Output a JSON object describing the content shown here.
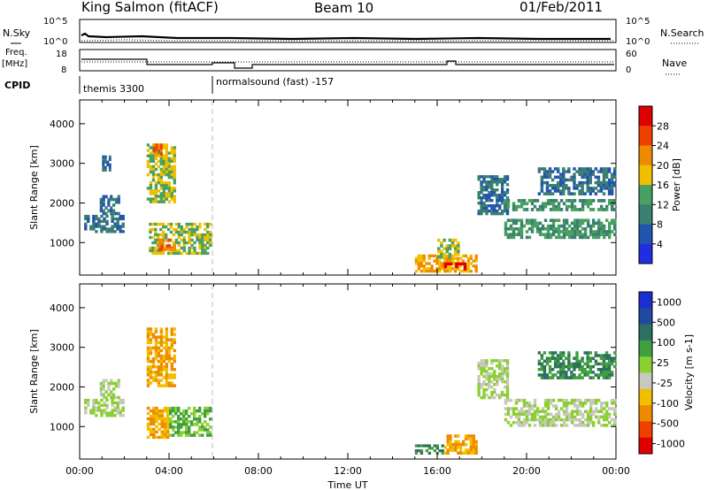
{
  "header": {
    "station": "King Salmon (fitACF)",
    "beam": "Beam 10",
    "date": "01/Feb/2011"
  },
  "noise_panel": {
    "left_label": "N.Sky",
    "right_label": "N.Search",
    "left_ticks": [
      "10^5",
      "10^0"
    ],
    "right_ticks": [
      "10^5",
      "10^0"
    ]
  },
  "freq_panel": {
    "left_label_top": "Freq.",
    "left_label_bottom": "[MHz]",
    "right_label": "Nave",
    "left_ticks": [
      "18",
      "8"
    ],
    "right_ticks": [
      "60",
      "0"
    ]
  },
  "cpid": {
    "label": "CPID",
    "segments": [
      {
        "name": "themis 3300",
        "start_hour": 0,
        "end_hour": 6
      },
      {
        "name": "normalsound (fast) -157",
        "start_hour": 6,
        "end_hour": 24
      }
    ]
  },
  "colors": {
    "power_scale": [
      "#1f2fe0",
      "#2255b0",
      "#3a7f70",
      "#4aa060",
      "#f0c000",
      "#f08a00",
      "#f04000",
      "#e00000"
    ],
    "velocity_scale": [
      "#e00000",
      "#f04000",
      "#f08a00",
      "#f0c000",
      "#c8c8c0",
      "#8ad030",
      "#40a040",
      "#2e7060",
      "#204aa0",
      "#1a2fd0"
    ]
  },
  "chart_data": [
    {
      "type": "heatmap",
      "title": "Power",
      "xlabel": "",
      "ylabel": "Slant Range [km]",
      "colorbar_label": "Power [dB]",
      "colorbar_ticks": [
        "28",
        "24",
        "20",
        "16",
        "12",
        "8",
        "4"
      ],
      "xlim": [
        0,
        24
      ],
      "ylim": [
        180,
        4600
      ],
      "yticks": [
        "4000",
        "3000",
        "2000",
        "1000"
      ],
      "regions": [
        {
          "t0": 0.2,
          "t1": 2.0,
          "r0": 1250,
          "r1": 1700,
          "level": 1
        },
        {
          "t0": 0.9,
          "t1": 1.8,
          "r0": 1700,
          "r1": 2200,
          "level": 1
        },
        {
          "t0": 1.0,
          "t1": 1.4,
          "r0": 2800,
          "r1": 3200,
          "level": 1
        },
        {
          "t0": 3.0,
          "t1": 4.3,
          "r0": 2000,
          "r1": 3500,
          "level": 3
        },
        {
          "t0": 3.3,
          "t1": 3.7,
          "r0": 3200,
          "r1": 3500,
          "level": 5
        },
        {
          "t0": 3.1,
          "t1": 5.9,
          "r0": 700,
          "r1": 1500,
          "level": 3
        },
        {
          "t0": 3.4,
          "t1": 4.3,
          "r0": 800,
          "r1": 1100,
          "level": 5
        },
        {
          "t0": 15.0,
          "t1": 17.8,
          "r0": 250,
          "r1": 700,
          "level": 4
        },
        {
          "t0": 16.3,
          "t1": 17.3,
          "r0": 300,
          "r1": 500,
          "level": 7
        },
        {
          "t0": 16.0,
          "t1": 17.0,
          "r0": 600,
          "r1": 1100,
          "level": 3
        },
        {
          "t0": 17.8,
          "t1": 19.2,
          "r0": 1700,
          "r1": 2700,
          "level": 1
        },
        {
          "t0": 19.0,
          "t1": 24.0,
          "r0": 1100,
          "r1": 1600,
          "level": 2
        },
        {
          "t0": 19.0,
          "t1": 24.0,
          "r0": 1800,
          "r1": 2100,
          "level": 2
        },
        {
          "t0": 20.5,
          "t1": 24.0,
          "r0": 2200,
          "r1": 2900,
          "level": 1
        }
      ]
    },
    {
      "type": "heatmap",
      "title": "Velocity",
      "xlabel": "Time UT",
      "ylabel": "Slant Range [km]",
      "colorbar_label": "Velocity [m s-1]",
      "colorbar_ticks": [
        "1000",
        "500",
        "100",
        "25",
        "-25",
        "-100",
        "-500",
        "-1000"
      ],
      "xlim": [
        0,
        24
      ],
      "ylim": [
        180,
        4600
      ],
      "yticks": [
        "4000",
        "3000",
        "2000",
        "1000"
      ],
      "xticks": [
        "00:00",
        "04:00",
        "08:00",
        "12:00",
        "16:00",
        "20:00",
        "00:00"
      ],
      "regions": [
        {
          "t0": 0.2,
          "t1": 2.0,
          "r0": 1250,
          "r1": 1700,
          "level": 4
        },
        {
          "t0": 0.9,
          "t1": 1.8,
          "r0": 1700,
          "r1": 2200,
          "level": 4
        },
        {
          "t0": 3.0,
          "t1": 4.3,
          "r0": 2000,
          "r1": 3500,
          "level": 2
        },
        {
          "t0": 3.0,
          "t1": 4.0,
          "r0": 700,
          "r1": 1500,
          "level": 2
        },
        {
          "t0": 4.0,
          "t1": 5.9,
          "r0": 750,
          "r1": 1500,
          "level": 5
        },
        {
          "t0": 15.0,
          "t1": 16.3,
          "r0": 300,
          "r1": 550,
          "level": 6
        },
        {
          "t0": 16.3,
          "t1": 17.8,
          "r0": 300,
          "r1": 800,
          "level": 2
        },
        {
          "t0": 17.8,
          "t1": 19.2,
          "r0": 1700,
          "r1": 2700,
          "level": 4
        },
        {
          "t0": 19.0,
          "t1": 24.0,
          "r0": 1000,
          "r1": 1700,
          "level": 4
        },
        {
          "t0": 20.5,
          "t1": 24.0,
          "r0": 2200,
          "r1": 2900,
          "level": 6
        }
      ]
    }
  ]
}
